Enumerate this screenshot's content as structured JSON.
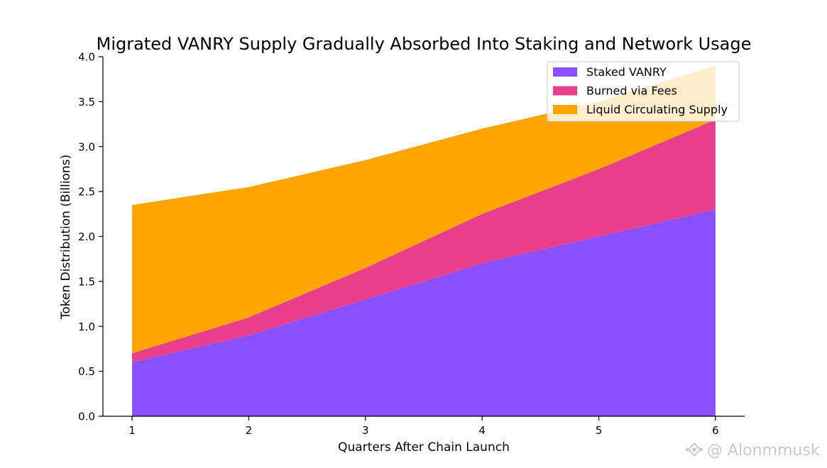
{
  "chart_data": {
    "type": "area",
    "stacked": true,
    "title": "Migrated VANRY Supply Gradually Absorbed Into Staking and Network Usage",
    "xlabel": "Quarters After Chain Launch",
    "ylabel": "Token Distribution (Billions)",
    "x": [
      1,
      2,
      3,
      4,
      5,
      6
    ],
    "xticks": [
      "1",
      "2",
      "3",
      "4",
      "5",
      "6"
    ],
    "yticks": [
      "0.0",
      "0.5",
      "1.0",
      "1.5",
      "2.0",
      "2.5",
      "3.0",
      "3.5",
      "4.0"
    ],
    "ylim": [
      0,
      4.0
    ],
    "xlim": [
      0.75,
      6.25
    ],
    "grid": false,
    "legend_position": "top-right",
    "series": [
      {
        "name": "Staked VANRY",
        "color": "#8a4fff",
        "values": [
          0.6,
          0.9,
          1.3,
          1.7,
          2.0,
          2.3
        ]
      },
      {
        "name": "Burned via Fees",
        "color": "#e83e8c",
        "values": [
          0.1,
          0.2,
          0.35,
          0.55,
          0.75,
          1.0
        ]
      },
      {
        "name": "Liquid Circulating Supply",
        "color": "#ffa500",
        "values": [
          1.65,
          1.45,
          1.2,
          0.95,
          0.75,
          0.6
        ]
      }
    ]
  },
  "watermark": {
    "text": "@ Alonmmusk",
    "icon": "binance-logo-icon"
  }
}
